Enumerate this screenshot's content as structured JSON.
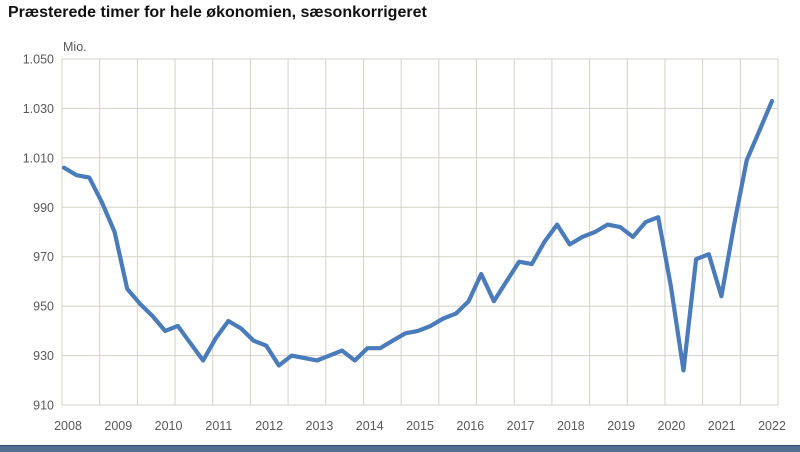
{
  "title": "Præsterede timer for hele økonomien, sæsonkorrigeret",
  "unit_label": "Mio.",
  "chart_data": {
    "type": "line",
    "title": "Præsterede timer for hele økonomien, sæsonkorrigeret",
    "ylabel": "Mio.",
    "frequency": "quarterly",
    "period_start": "2008-Q1",
    "period_end": "2022-Q1",
    "grid": true,
    "legend_position": "none",
    "line_color": "#4a7bba",
    "grid_color": "#d4d1c8",
    "tick_label_color": "#595959",
    "ylim": [
      910,
      1050
    ],
    "y_ticks": [
      {
        "label": "1.050",
        "value": 1050
      },
      {
        "label": "1.030",
        "value": 1030
      },
      {
        "label": "1.010",
        "value": 1010
      },
      {
        "label": "990",
        "value": 990
      },
      {
        "label": "970",
        "value": 970
      },
      {
        "label": "950",
        "value": 950
      },
      {
        "label": "930",
        "value": 930
      },
      {
        "label": "910",
        "value": 910
      }
    ],
    "x_year_labels": [
      "2008",
      "2009",
      "2010",
      "2011",
      "2012",
      "2013",
      "2014",
      "2015",
      "2016",
      "2017",
      "2018",
      "2019",
      "2020",
      "2021",
      "2022"
    ],
    "series": [
      {
        "name": "Præsterede timer, sæsonkorrigeret (mio.)",
        "values": [
          1006,
          1003,
          1002,
          992,
          980,
          957,
          951,
          946,
          940,
          942,
          935,
          928,
          937,
          944,
          941,
          936,
          934,
          926,
          930,
          929,
          928,
          930,
          932,
          928,
          933,
          933,
          936,
          939,
          940,
          942,
          945,
          947,
          952,
          963,
          952,
          960,
          968,
          967,
          976,
          983,
          975,
          978,
          980,
          983,
          982,
          978,
          984,
          986,
          958,
          924,
          969,
          971,
          954,
          983,
          1009,
          1021,
          1033
        ]
      }
    ]
  }
}
